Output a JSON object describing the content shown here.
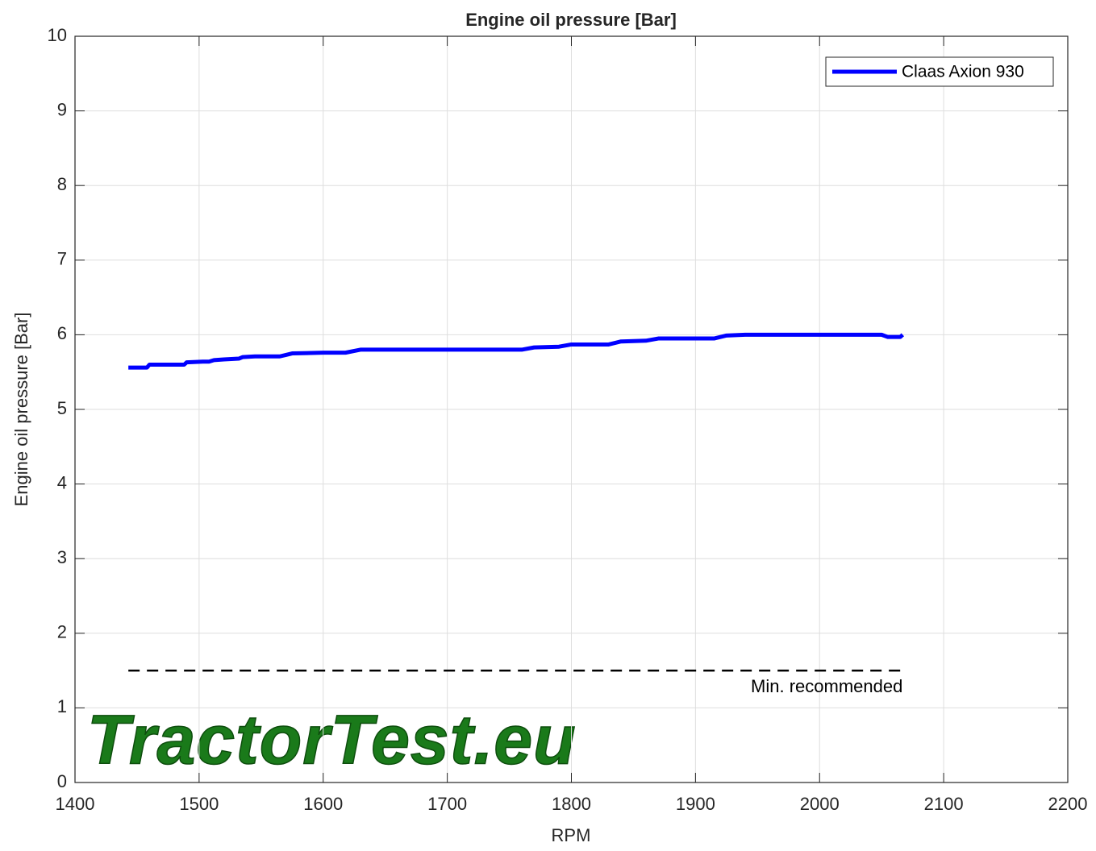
{
  "chart_data": {
    "type": "line",
    "title": "Engine oil pressure [Bar]",
    "x_label": "RPM",
    "y_label": "Engine oil pressure [Bar]",
    "xlim": [
      1400,
      2200
    ],
    "xticks": [
      1400,
      1500,
      1600,
      1700,
      1800,
      1900,
      2000,
      2100,
      2200
    ],
    "ylim": [
      0,
      10
    ],
    "yticks": [
      0,
      1,
      2,
      3,
      4,
      5,
      6,
      7,
      8,
      9,
      10
    ],
    "grid": true,
    "legend": "upper right",
    "series": [
      {
        "name": "Claas Axion 930",
        "color": "#0000ff",
        "x": [
          1443,
          1458,
          1460,
          1488,
          1490,
          1503,
          1508,
          1512,
          1520,
          1532,
          1535,
          1545,
          1565,
          1570,
          1575,
          1600,
          1618,
          1630,
          1760,
          1770,
          1790,
          1800,
          1830,
          1840,
          1860,
          1870,
          1915,
          1925,
          1940,
          2050,
          2055,
          2065,
          2067
        ],
        "values": [
          5.56,
          5.56,
          5.6,
          5.6,
          5.63,
          5.64,
          5.64,
          5.66,
          5.67,
          5.68,
          5.7,
          5.71,
          5.71,
          5.73,
          5.75,
          5.76,
          5.76,
          5.8,
          5.8,
          5.83,
          5.84,
          5.87,
          5.87,
          5.91,
          5.92,
          5.95,
          5.95,
          5.99,
          6.0,
          6.0,
          5.97,
          5.97,
          6.0
        ]
      }
    ],
    "reference_line": {
      "value": 1.5,
      "label": "Min. recommended",
      "x": [
        1443,
        2067
      ],
      "color": "#000000"
    },
    "watermark": "TractorTest.eu"
  }
}
